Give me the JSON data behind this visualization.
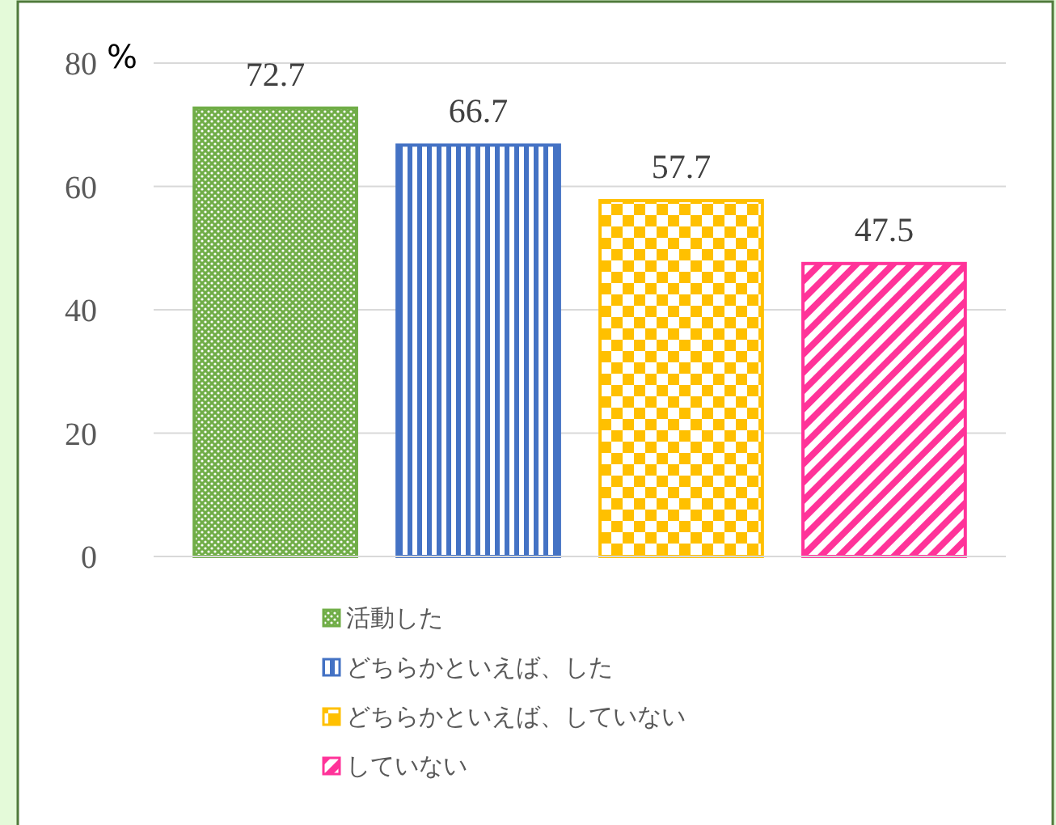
{
  "chart_data": {
    "type": "bar",
    "ylabel": "%",
    "categories": [
      null
    ],
    "series": [
      {
        "name": "活動した",
        "color": "#70ad47",
        "values": [
          72.7
        ]
      },
      {
        "name": "どちらかといえば、した",
        "color": "#4472c4",
        "values": [
          66.7
        ]
      },
      {
        "name": "どちらかといえば、していない",
        "color": "#ffc000",
        "values": [
          57.7
        ]
      },
      {
        "name": "していない",
        "color": "#ff3399",
        "values": [
          47.5
        ]
      }
    ],
    "ylim": [
      0,
      80
    ],
    "yticks": [
      0,
      20,
      40,
      60,
      80
    ],
    "grid": "y",
    "data_labels": true,
    "legend": "bottom"
  }
}
